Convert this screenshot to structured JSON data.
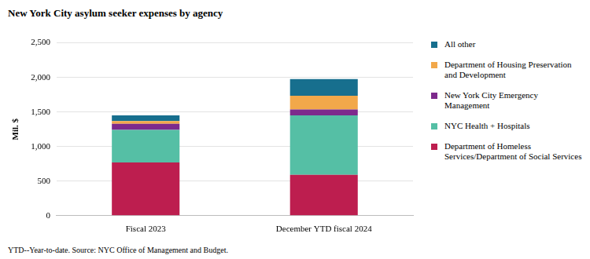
{
  "chart_data": {
    "type": "bar",
    "stacked": true,
    "title": "New York City asylum seeker expenses by agency",
    "y_label": "Mil. $",
    "note": "YTD--Year-to-date. Source: NYC Office of Management and Budget.",
    "categories": [
      "Fiscal 2023",
      "December YTD fiscal 2024"
    ],
    "series": [
      {
        "name": "Department of Homeless Services/Department of Social Services",
        "color": "#bd1e4f",
        "values": [
          770,
          590
        ]
      },
      {
        "name": "NYC Health + Hospitals",
        "color": "#55bfa5",
        "values": [
          470,
          860
        ]
      },
      {
        "name": "New York City Emergency Management",
        "color": "#7d2a8c",
        "values": [
          90,
          85
        ]
      },
      {
        "name": "Department of Housing Preservation and Development",
        "color": "#f2a84a",
        "values": [
          40,
          200
        ]
      },
      {
        "name": "All other",
        "color": "#176f8e",
        "values": [
          80,
          240
        ]
      }
    ],
    "ylim": [
      0,
      2500
    ],
    "yticks": [
      0,
      500,
      {
        "value": 1000,
        "label": "1,000"
      },
      {
        "value": 1500,
        "label": "1,500"
      },
      {
        "value": 2000,
        "label": "2,000"
      },
      {
        "value": 2500,
        "label": "2,500"
      }
    ],
    "grid": true,
    "legend": "right"
  }
}
